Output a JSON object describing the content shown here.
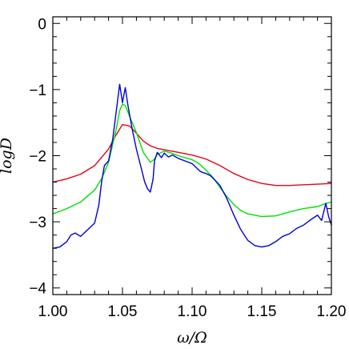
{
  "chart_data": {
    "type": "line",
    "title": "",
    "xlabel": "ω/Ω",
    "ylabel": "logD",
    "xlim": [
      1.0,
      1.2
    ],
    "ylim": [
      -4.1,
      0.1
    ],
    "x_ticks": [
      1.0,
      1.05,
      1.1,
      1.15,
      1.2
    ],
    "x_tick_labels": [
      "1.00",
      "1.05",
      "1.10",
      "1.15",
      "1.20"
    ],
    "y_ticks": [
      0,
      -1,
      -2,
      -3,
      -4
    ],
    "y_tick_labels": [
      "0",
      "−1",
      "−2",
      "−3",
      "−4"
    ],
    "grid": false,
    "legend": "none",
    "series": [
      {
        "color": "#e8001c",
        "points": [
          [
            1.0,
            -2.4
          ],
          [
            1.01,
            -2.35
          ],
          [
            1.02,
            -2.28
          ],
          [
            1.03,
            -2.15
          ],
          [
            1.04,
            -1.9
          ],
          [
            1.045,
            -1.7
          ],
          [
            1.05,
            -1.53
          ],
          [
            1.055,
            -1.55
          ],
          [
            1.06,
            -1.66
          ],
          [
            1.065,
            -1.78
          ],
          [
            1.07,
            -1.85
          ],
          [
            1.075,
            -1.89
          ],
          [
            1.08,
            -1.91
          ],
          [
            1.09,
            -1.95
          ],
          [
            1.1,
            -1.99
          ],
          [
            1.11,
            -2.05
          ],
          [
            1.12,
            -2.15
          ],
          [
            1.13,
            -2.27
          ],
          [
            1.14,
            -2.36
          ],
          [
            1.15,
            -2.42
          ],
          [
            1.16,
            -2.45
          ],
          [
            1.17,
            -2.45
          ],
          [
            1.18,
            -2.44
          ],
          [
            1.19,
            -2.43
          ],
          [
            1.2,
            -2.42
          ]
        ]
      },
      {
        "color": "#00e000",
        "points": [
          [
            1.0,
            -2.88
          ],
          [
            1.01,
            -2.8
          ],
          [
            1.02,
            -2.7
          ],
          [
            1.03,
            -2.52
          ],
          [
            1.035,
            -2.35
          ],
          [
            1.04,
            -2.1
          ],
          [
            1.045,
            -1.65
          ],
          [
            1.048,
            -1.32
          ],
          [
            1.05,
            -1.22
          ],
          [
            1.052,
            -1.24
          ],
          [
            1.055,
            -1.4
          ],
          [
            1.06,
            -1.65
          ],
          [
            1.065,
            -1.95
          ],
          [
            1.07,
            -2.1
          ],
          [
            1.073,
            -2.05
          ],
          [
            1.075,
            -1.98
          ],
          [
            1.08,
            -1.93
          ],
          [
            1.085,
            -1.96
          ],
          [
            1.09,
            -2.0
          ],
          [
            1.095,
            -2.03
          ],
          [
            1.1,
            -2.06
          ],
          [
            1.105,
            -2.12
          ],
          [
            1.11,
            -2.22
          ],
          [
            1.115,
            -2.33
          ],
          [
            1.12,
            -2.48
          ],
          [
            1.125,
            -2.62
          ],
          [
            1.13,
            -2.74
          ],
          [
            1.135,
            -2.83
          ],
          [
            1.14,
            -2.88
          ],
          [
            1.15,
            -2.92
          ],
          [
            1.16,
            -2.91
          ],
          [
            1.17,
            -2.85
          ],
          [
            1.18,
            -2.8
          ],
          [
            1.19,
            -2.77
          ],
          [
            1.195,
            -2.73
          ],
          [
            1.2,
            -2.7
          ]
        ]
      },
      {
        "color": "#0000d8",
        "points": [
          [
            1.0,
            -3.4
          ],
          [
            1.005,
            -3.38
          ],
          [
            1.01,
            -3.3
          ],
          [
            1.013,
            -3.2
          ],
          [
            1.016,
            -3.17
          ],
          [
            1.02,
            -3.22
          ],
          [
            1.025,
            -3.12
          ],
          [
            1.03,
            -3.02
          ],
          [
            1.033,
            -2.75
          ],
          [
            1.035,
            -2.4
          ],
          [
            1.037,
            -2.15
          ],
          [
            1.04,
            -2.08
          ],
          [
            1.043,
            -1.75
          ],
          [
            1.046,
            -1.25
          ],
          [
            1.048,
            -0.92
          ],
          [
            1.05,
            -1.2
          ],
          [
            1.052,
            -0.97
          ],
          [
            1.054,
            -1.25
          ],
          [
            1.057,
            -1.6
          ],
          [
            1.06,
            -1.9
          ],
          [
            1.063,
            -2.15
          ],
          [
            1.066,
            -2.4
          ],
          [
            1.068,
            -2.5
          ],
          [
            1.07,
            -2.55
          ],
          [
            1.072,
            -2.35
          ],
          [
            1.073,
            -2.08
          ],
          [
            1.075,
            -1.95
          ],
          [
            1.078,
            -2.03
          ],
          [
            1.08,
            -1.96
          ],
          [
            1.083,
            -2.02
          ],
          [
            1.086,
            -1.99
          ],
          [
            1.09,
            -2.04
          ],
          [
            1.095,
            -2.08
          ],
          [
            1.1,
            -2.12
          ],
          [
            1.103,
            -2.18
          ],
          [
            1.106,
            -2.24
          ],
          [
            1.11,
            -2.27
          ],
          [
            1.113,
            -2.3
          ],
          [
            1.116,
            -2.36
          ],
          [
            1.12,
            -2.45
          ],
          [
            1.125,
            -2.65
          ],
          [
            1.13,
            -2.9
          ],
          [
            1.135,
            -3.12
          ],
          [
            1.14,
            -3.28
          ],
          [
            1.145,
            -3.36
          ],
          [
            1.15,
            -3.38
          ],
          [
            1.155,
            -3.36
          ],
          [
            1.16,
            -3.3
          ],
          [
            1.165,
            -3.22
          ],
          [
            1.17,
            -3.18
          ],
          [
            1.175,
            -3.1
          ],
          [
            1.18,
            -3.05
          ],
          [
            1.185,
            -2.97
          ],
          [
            1.19,
            -2.9
          ],
          [
            1.193,
            -2.98
          ],
          [
            1.196,
            -2.72
          ],
          [
            1.198,
            -2.92
          ],
          [
            1.2,
            -3.05
          ]
        ]
      }
    ]
  }
}
